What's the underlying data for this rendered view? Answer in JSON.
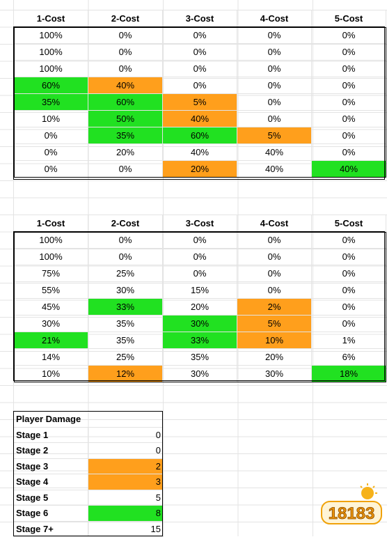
{
  "headers": [
    "1-Cost",
    "2-Cost",
    "3-Cost",
    "4-Cost",
    "5-Cost"
  ],
  "colors": {
    "green": "#21e121",
    "orange": "#ff9f1c"
  },
  "table1": [
    [
      {
        "v": "100%"
      },
      {
        "v": "0%"
      },
      {
        "v": "0%"
      },
      {
        "v": "0%"
      },
      {
        "v": "0%"
      }
    ],
    [
      {
        "v": "100%"
      },
      {
        "v": "0%"
      },
      {
        "v": "0%"
      },
      {
        "v": "0%"
      },
      {
        "v": "0%"
      }
    ],
    [
      {
        "v": "100%"
      },
      {
        "v": "0%"
      },
      {
        "v": "0%"
      },
      {
        "v": "0%"
      },
      {
        "v": "0%"
      }
    ],
    [
      {
        "v": "60%",
        "c": "green"
      },
      {
        "v": "40%",
        "c": "orange"
      },
      {
        "v": "0%"
      },
      {
        "v": "0%"
      },
      {
        "v": "0%"
      }
    ],
    [
      {
        "v": "35%",
        "c": "green"
      },
      {
        "v": "60%",
        "c": "green"
      },
      {
        "v": "5%",
        "c": "orange"
      },
      {
        "v": "0%"
      },
      {
        "v": "0%"
      }
    ],
    [
      {
        "v": "10%"
      },
      {
        "v": "50%",
        "c": "green"
      },
      {
        "v": "40%",
        "c": "orange"
      },
      {
        "v": "0%"
      },
      {
        "v": "0%"
      }
    ],
    [
      {
        "v": "0%"
      },
      {
        "v": "35%",
        "c": "green"
      },
      {
        "v": "60%",
        "c": "green"
      },
      {
        "v": "5%",
        "c": "orange"
      },
      {
        "v": "0%"
      }
    ],
    [
      {
        "v": "0%"
      },
      {
        "v": "20%"
      },
      {
        "v": "40%"
      },
      {
        "v": "40%"
      },
      {
        "v": "0%"
      }
    ],
    [
      {
        "v": "0%"
      },
      {
        "v": "0%"
      },
      {
        "v": "20%",
        "c": "orange"
      },
      {
        "v": "40%"
      },
      {
        "v": "40%",
        "c": "green"
      }
    ]
  ],
  "table2": [
    [
      {
        "v": "100%"
      },
      {
        "v": "0%"
      },
      {
        "v": "0%"
      },
      {
        "v": "0%"
      },
      {
        "v": "0%"
      }
    ],
    [
      {
        "v": "100%"
      },
      {
        "v": "0%"
      },
      {
        "v": "0%"
      },
      {
        "v": "0%"
      },
      {
        "v": "0%"
      }
    ],
    [
      {
        "v": "75%"
      },
      {
        "v": "25%"
      },
      {
        "v": "0%"
      },
      {
        "v": "0%"
      },
      {
        "v": "0%"
      }
    ],
    [
      {
        "v": "55%"
      },
      {
        "v": "30%"
      },
      {
        "v": "15%"
      },
      {
        "v": "0%"
      },
      {
        "v": "0%"
      }
    ],
    [
      {
        "v": "45%"
      },
      {
        "v": "33%",
        "c": "green"
      },
      {
        "v": "20%"
      },
      {
        "v": "2%",
        "c": "orange"
      },
      {
        "v": "0%"
      }
    ],
    [
      {
        "v": "30%"
      },
      {
        "v": "35%"
      },
      {
        "v": "30%",
        "c": "green"
      },
      {
        "v": "5%",
        "c": "orange"
      },
      {
        "v": "0%"
      }
    ],
    [
      {
        "v": "21%",
        "c": "green"
      },
      {
        "v": "35%"
      },
      {
        "v": "33%",
        "c": "green"
      },
      {
        "v": "10%",
        "c": "orange"
      },
      {
        "v": "1%"
      }
    ],
    [
      {
        "v": "14%"
      },
      {
        "v": "25%"
      },
      {
        "v": "35%"
      },
      {
        "v": "20%"
      },
      {
        "v": "6%"
      }
    ],
    [
      {
        "v": "10%"
      },
      {
        "v": "12%",
        "c": "orange"
      },
      {
        "v": "30%"
      },
      {
        "v": "30%"
      },
      {
        "v": "18%",
        "c": "green"
      }
    ]
  ],
  "damage": {
    "title": "Player Damage",
    "rows": [
      {
        "label": "Stage 1",
        "value": "0"
      },
      {
        "label": "Stage 2",
        "value": "0"
      },
      {
        "label": "Stage 3",
        "value": "2",
        "c": "orange"
      },
      {
        "label": "Stage 4",
        "value": "3",
        "c": "orange"
      },
      {
        "label": "Stage 5",
        "value": "5"
      },
      {
        "label": "Stage 6",
        "value": "8",
        "c": "green"
      },
      {
        "label": "Stage 7+",
        "value": "15"
      }
    ]
  },
  "watermark": {
    "text": "18183"
  }
}
